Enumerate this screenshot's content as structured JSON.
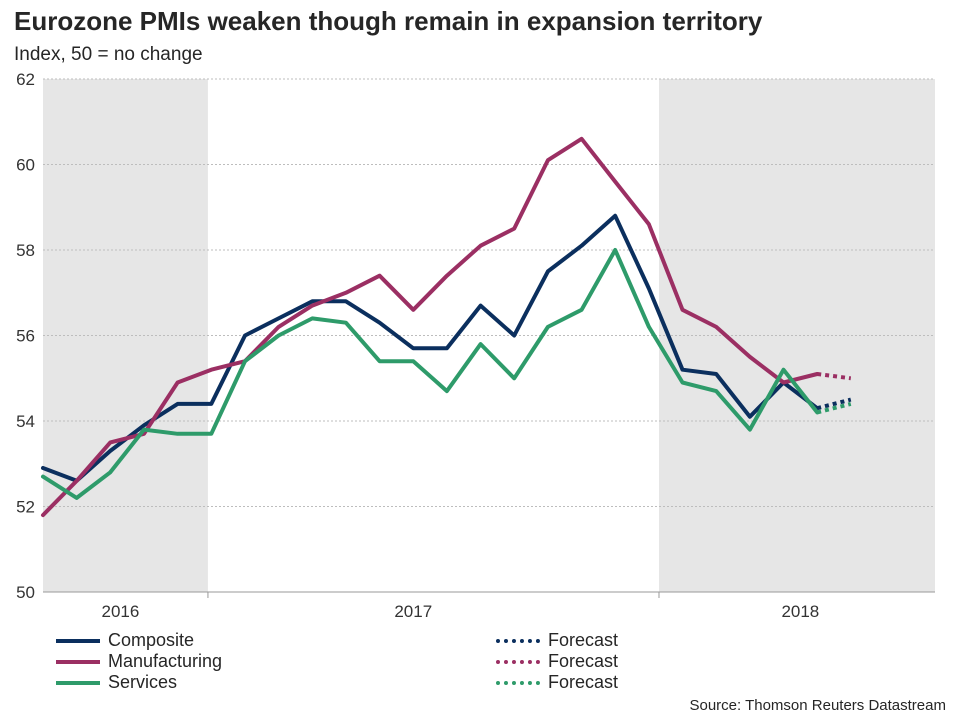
{
  "title": "Eurozone PMIs weaken though remain in expansion territory",
  "subtitle": "Index, 50 = no change",
  "source": "Source: Thomson Reuters Datastream",
  "colors": {
    "composite": "#0b2f5e",
    "manufacturing": "#9b2f63",
    "services": "#2e9b6a",
    "shade": "#e6e6e6",
    "grid": "#bdbdbd"
  },
  "legend": [
    {
      "label": "Composite",
      "series": "composite",
      "style": "solid"
    },
    {
      "label": "Manufacturing",
      "series": "manufacturing",
      "style": "solid"
    },
    {
      "label": "Services",
      "series": "services",
      "style": "solid"
    },
    {
      "label": "Forecast",
      "series": "composite",
      "style": "dotted"
    },
    {
      "label": "Forecast",
      "series": "manufacturing",
      "style": "dotted"
    },
    {
      "label": "Forecast",
      "series": "services",
      "style": "dotted"
    }
  ],
  "chart_data": {
    "type": "line",
    "title": "Eurozone PMIs weaken though remain in expansion territory",
    "ylabel": "Index, 50 = no change",
    "xlabel": "",
    "ylim": [
      50,
      62
    ],
    "yticks": [
      50,
      52,
      54,
      56,
      58,
      60,
      62
    ],
    "xlim": [
      0,
      26.5
    ],
    "year_labels": [
      {
        "label": "2016",
        "x": 2.3
      },
      {
        "label": "2017",
        "x": 11
      },
      {
        "label": "2018",
        "x": 22.5
      }
    ],
    "shaded_ranges": [
      [
        0,
        4.9
      ],
      [
        18.3,
        26.5
      ]
    ],
    "grid": true,
    "x": [
      0,
      1,
      2,
      3,
      4,
      5,
      6,
      7,
      8,
      9,
      10,
      11,
      12,
      13,
      14,
      15,
      16,
      17,
      18,
      19,
      20,
      21,
      22,
      23,
      24,
      25,
      26
    ],
    "series": [
      {
        "name": "Composite",
        "key": "composite",
        "values": [
          52.9,
          52.6,
          53.3,
          53.9,
          54.4,
          54.4,
          56.0,
          56.4,
          56.8,
          56.8,
          56.3,
          55.7,
          55.7,
          56.7,
          56.0,
          57.5,
          58.1,
          58.8,
          57.1,
          55.2,
          55.1,
          54.1,
          54.9,
          54.3,
          null,
          null,
          null
        ],
        "forecast_values": [
          null,
          null,
          null,
          null,
          null,
          null,
          null,
          null,
          null,
          null,
          null,
          null,
          null,
          null,
          null,
          null,
          null,
          null,
          null,
          null,
          null,
          null,
          null,
          54.3,
          54.5,
          null,
          null
        ]
      },
      {
        "name": "Manufacturing",
        "key": "manufacturing",
        "values": [
          51.8,
          52.6,
          53.5,
          53.7,
          54.9,
          55.2,
          55.4,
          56.2,
          56.7,
          57.0,
          57.4,
          56.6,
          57.4,
          58.1,
          58.5,
          60.1,
          60.6,
          59.6,
          58.6,
          56.6,
          56.2,
          55.5,
          54.9,
          55.1,
          null,
          null,
          null
        ],
        "forecast_values": [
          null,
          null,
          null,
          null,
          null,
          null,
          null,
          null,
          null,
          null,
          null,
          null,
          null,
          null,
          null,
          null,
          null,
          null,
          null,
          null,
          null,
          null,
          null,
          55.1,
          55.0,
          null,
          null
        ]
      },
      {
        "name": "Services",
        "key": "services",
        "values": [
          52.7,
          52.2,
          52.8,
          53.8,
          53.7,
          53.7,
          55.4,
          56.0,
          56.4,
          56.3,
          55.4,
          55.4,
          54.7,
          55.8,
          55.0,
          56.2,
          56.6,
          58.0,
          56.2,
          54.9,
          54.7,
          53.8,
          55.2,
          54.2,
          null,
          null,
          null
        ],
        "forecast_values": [
          null,
          null,
          null,
          null,
          null,
          null,
          null,
          null,
          null,
          null,
          null,
          null,
          null,
          null,
          null,
          null,
          null,
          null,
          null,
          null,
          null,
          null,
          null,
          54.2,
          54.4,
          null,
          null
        ]
      }
    ]
  }
}
